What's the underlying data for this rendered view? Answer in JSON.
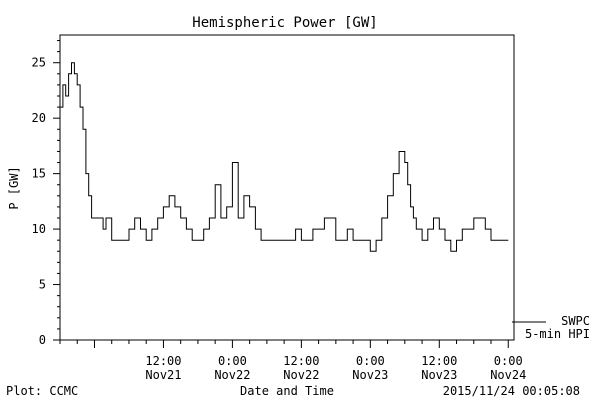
{
  "chart_data": {
    "type": "line",
    "title": "Hemispheric Power [GW]",
    "xlabel": "Date and Time",
    "ylabel": "P [GW]",
    "ylim": [
      0,
      27.5
    ],
    "xlim": [
      "2015-11-20T18:00",
      "2015-11-24T01:00"
    ],
    "yticks": [
      0,
      5,
      10,
      15,
      20,
      25
    ],
    "xticks": [
      {
        "time": "2015-11-21T12:00",
        "label1": "12:00",
        "label2": "Nov21"
      },
      {
        "time": "2015-11-22T00:00",
        "label1": "0:00",
        "label2": "Nov22"
      },
      {
        "time": "2015-11-22T12:00",
        "label1": "12:00",
        "label2": "Nov22"
      },
      {
        "time": "2015-11-23T00:00",
        "label1": "0:00",
        "label2": "Nov23"
      },
      {
        "time": "2015-11-23T12:00",
        "label1": "12:00",
        "label2": "Nov23"
      },
      {
        "time": "2015-11-24T00:00",
        "label1": "0:00",
        "label2": "Nov24"
      }
    ],
    "series": [
      {
        "name": "5-min HPI",
        "x": [
          "2015-11-20T18:00",
          "2015-11-20T18:30",
          "2015-11-20T19:00",
          "2015-11-20T19:30",
          "2015-11-20T20:00",
          "2015-11-20T20:30",
          "2015-11-20T21:00",
          "2015-11-20T21:30",
          "2015-11-20T22:00",
          "2015-11-20T22:30",
          "2015-11-20T23:00",
          "2015-11-20T23:30",
          "2015-11-21T00:00",
          "2015-11-21T00:30",
          "2015-11-21T01:00",
          "2015-11-21T01:30",
          "2015-11-21T02:00",
          "2015-11-21T03:00",
          "2015-11-21T04:00",
          "2015-11-21T05:00",
          "2015-11-21T06:00",
          "2015-11-21T07:00",
          "2015-11-21T08:00",
          "2015-11-21T09:00",
          "2015-11-21T10:00",
          "2015-11-21T11:00",
          "2015-11-21T12:00",
          "2015-11-21T13:00",
          "2015-11-21T14:00",
          "2015-11-21T15:00",
          "2015-11-21T16:00",
          "2015-11-21T17:00",
          "2015-11-21T18:00",
          "2015-11-21T19:00",
          "2015-11-21T20:00",
          "2015-11-21T21:00",
          "2015-11-21T22:00",
          "2015-11-21T23:00",
          "2015-11-22T00:00",
          "2015-11-22T01:00",
          "2015-11-22T02:00",
          "2015-11-22T03:00",
          "2015-11-22T04:00",
          "2015-11-22T05:00",
          "2015-11-22T06:00",
          "2015-11-22T07:00",
          "2015-11-22T08:00",
          "2015-11-22T09:00",
          "2015-11-22T10:00",
          "2015-11-22T11:00",
          "2015-11-22T12:00",
          "2015-11-22T14:00",
          "2015-11-22T16:00",
          "2015-11-22T18:00",
          "2015-11-22T20:00",
          "2015-11-22T21:00",
          "2015-11-22T22:00",
          "2015-11-22T23:00",
          "2015-11-23T00:00",
          "2015-11-23T01:00",
          "2015-11-23T02:00",
          "2015-11-23T03:00",
          "2015-11-23T04:00",
          "2015-11-23T05:00",
          "2015-11-23T06:00",
          "2015-11-23T06:30",
          "2015-11-23T07:00",
          "2015-11-23T07:30",
          "2015-11-23T08:00",
          "2015-11-23T09:00",
          "2015-11-23T10:00",
          "2015-11-23T11:00",
          "2015-11-23T12:00",
          "2015-11-23T13:00",
          "2015-11-23T14:00",
          "2015-11-23T15:00",
          "2015-11-23T16:00",
          "2015-11-23T17:00",
          "2015-11-23T18:00",
          "2015-11-23T19:00",
          "2015-11-23T20:00",
          "2015-11-23T21:00",
          "2015-11-23T22:00",
          "2015-11-23T23:00",
          "2015-11-24T00:00"
        ],
        "y": [
          21,
          23,
          22,
          24,
          25,
          24,
          23,
          21,
          19,
          15,
          13,
          11,
          11,
          11,
          11,
          10,
          11,
          9,
          9,
          9,
          10,
          11,
          10,
          9,
          10,
          11,
          12,
          13,
          12,
          11,
          10,
          9,
          9,
          10,
          11,
          14,
          11,
          12,
          16,
          11,
          13,
          12,
          10,
          9,
          9,
          9,
          9,
          9,
          9,
          10,
          9,
          10,
          11,
          9,
          10,
          9,
          9,
          9,
          8,
          9,
          11,
          13,
          15,
          17,
          16,
          14,
          12,
          11,
          10,
          9,
          10,
          11,
          10,
          9,
          8,
          9,
          10,
          10,
          11,
          11,
          10,
          9,
          9,
          9,
          9
        ]
      }
    ],
    "legend": [
      {
        "label": "SWPC",
        "style": "line"
      },
      {
        "label": "5-min HPI",
        "style": "none"
      }
    ],
    "legend_position": "bottom-right, outside plot"
  },
  "footer": {
    "left": "Plot: CCMC",
    "right": "2015/11/24 00:05:08"
  }
}
